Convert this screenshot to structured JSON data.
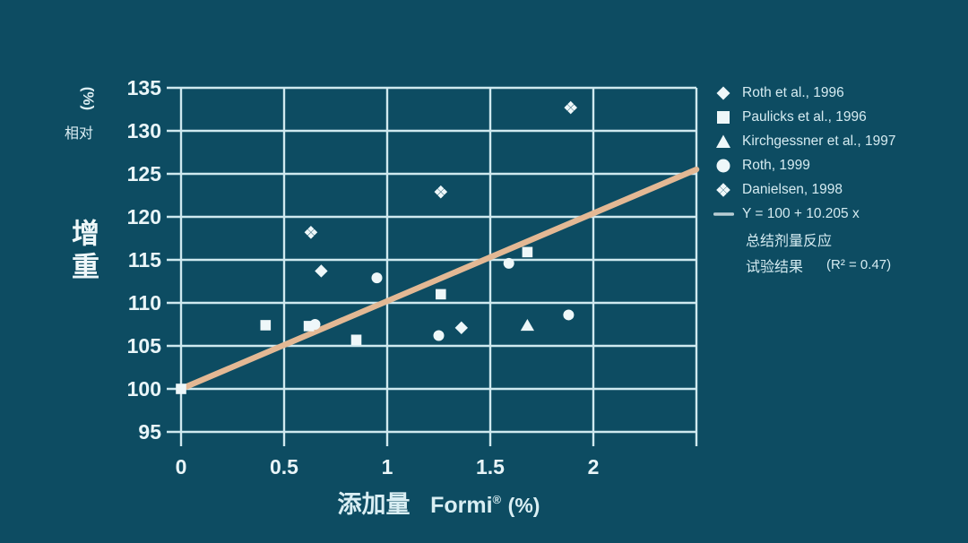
{
  "colors": {
    "background": "#0d4c62",
    "gridline": "#cfe9ef",
    "marker": "#eef7f9",
    "trend_line": "#e3b894",
    "tick_text": "#e9f5f8",
    "legend_text": "#d5ebf1",
    "legend_line_icon": "#b9cdd4"
  },
  "y_axis": {
    "unit_label": "(%)",
    "label_top": "相对",
    "label_main": "增重"
  },
  "x_axis": {
    "label_prefix": "添加量",
    "label_brand": "Formi",
    "label_reg": "®",
    "label_unit": "(%)"
  },
  "legend": {
    "entries": [
      {
        "marker": "diamond",
        "label": "Roth et al., 1996"
      },
      {
        "marker": "square",
        "label": "Paulicks et al., 1996"
      },
      {
        "marker": "triangle",
        "label": "Kirchgessner et al., 1997"
      },
      {
        "marker": "circle",
        "label": "Roth, 1999"
      },
      {
        "marker": "open-diamond",
        "label": "Danielsen, 1998"
      },
      {
        "marker": "line",
        "label": "Y = 100 + 10.205 x"
      }
    ],
    "note_line1": "总结剂量反应",
    "note_line2": "试验结果",
    "r_squared_label": "(R² = 0.47)"
  },
  "chart_data": {
    "type": "scatter",
    "xlabel": "添加量 Formi® (%)",
    "ylabel": "相对增重 (%)",
    "xlim": [
      0,
      2.5
    ],
    "ylim": [
      95,
      135
    ],
    "xticks": [
      0,
      0.5,
      1,
      1.5,
      2
    ],
    "yticks": [
      95,
      100,
      105,
      110,
      115,
      120,
      125,
      130,
      135
    ],
    "grid": true,
    "legend_position": "right",
    "series": [
      {
        "name": "Roth et al., 1996",
        "marker": "diamond",
        "points": [
          [
            0.68,
            113.7
          ],
          [
            1.36,
            107.1
          ]
        ]
      },
      {
        "name": "Paulicks et al., 1996",
        "marker": "square",
        "points": [
          [
            0,
            100
          ],
          [
            0.41,
            107.4
          ],
          [
            0.62,
            107.3
          ],
          [
            0.85,
            105.7
          ],
          [
            1.26,
            111.0
          ],
          [
            1.68,
            115.9
          ]
        ]
      },
      {
        "name": "Kirchgessner et al., 1997",
        "marker": "triangle",
        "points": [
          [
            1.68,
            107.4
          ]
        ]
      },
      {
        "name": "Roth, 1999",
        "marker": "circle",
        "points": [
          [
            0.65,
            107.5
          ],
          [
            0.95,
            112.9
          ],
          [
            1.25,
            106.2
          ],
          [
            1.59,
            114.6
          ],
          [
            1.88,
            108.6
          ]
        ]
      },
      {
        "name": "Danielsen, 1998",
        "marker": "open-diamond",
        "points": [
          [
            0.63,
            118.2
          ],
          [
            1.26,
            122.9
          ],
          [
            1.89,
            132.7
          ]
        ]
      }
    ],
    "trend": {
      "label": "Y = 100 + 10.205 x",
      "intercept": 100,
      "slope": 10.205,
      "x_start": 0,
      "x_end": 2.5,
      "r_squared": 0.47
    }
  }
}
